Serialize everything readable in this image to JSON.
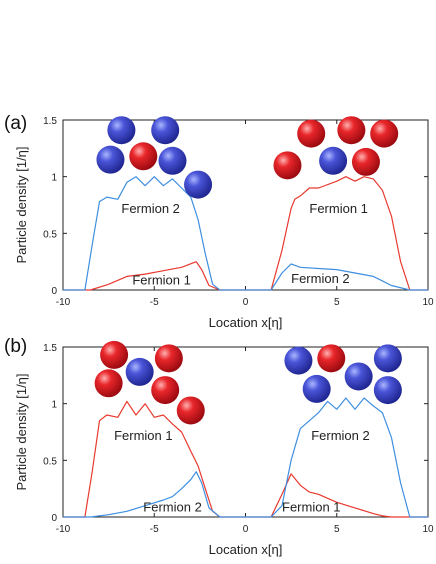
{
  "chart_data": [
    {
      "type": "line",
      "panel_label": "(a)",
      "xlabel": "Location x[η]",
      "ylabel": "Particle density [1/η]",
      "xlim": [
        -10,
        10
      ],
      "ylim": [
        0,
        1.5
      ],
      "xticks": [
        "-10",
        "-5",
        "0",
        "5",
        "10"
      ],
      "yticks": [
        "0",
        "0.5",
        "1",
        "1.5"
      ],
      "grid": false,
      "colors": {
        "Fermion 1": "#e8392e",
        "Fermion 2": "#3f8fe0"
      },
      "annotations": [
        {
          "text": "Fermion 2",
          "x": -6.8,
          "y": 0.68
        },
        {
          "text": "Fermion 1",
          "x": -6.2,
          "y": 0.05
        },
        {
          "text": "Fermion 1",
          "x": 3.5,
          "y": 0.68
        },
        {
          "text": "Fermion 2",
          "x": 2.5,
          "y": 0.06
        }
      ],
      "spheres": [
        {
          "x": -6.8,
          "y": 1.41,
          "color": "blue"
        },
        {
          "x": -4.4,
          "y": 1.41,
          "color": "blue"
        },
        {
          "x": -7.4,
          "y": 1.15,
          "color": "blue"
        },
        {
          "x": -5.6,
          "y": 1.18,
          "color": "red"
        },
        {
          "x": -4.0,
          "y": 1.14,
          "color": "blue"
        },
        {
          "x": -2.6,
          "y": 0.93,
          "color": "blue"
        },
        {
          "x": 3.6,
          "y": 1.38,
          "color": "red"
        },
        {
          "x": 5.8,
          "y": 1.41,
          "color": "red"
        },
        {
          "x": 7.6,
          "y": 1.38,
          "color": "red"
        },
        {
          "x": 2.3,
          "y": 1.1,
          "color": "red"
        },
        {
          "x": 4.8,
          "y": 1.14,
          "color": "blue"
        },
        {
          "x": 6.6,
          "y": 1.13,
          "color": "red"
        }
      ],
      "series": [
        {
          "name": "Fermion 1",
          "color": "#e8392e",
          "x": [
            -10,
            -8.5,
            -7.5,
            -6.5,
            -5.5,
            -4.5,
            -3.5,
            -2.7,
            -2.4,
            -2.0,
            -1.4,
            1.4,
            2.0,
            2.5,
            2.7,
            3.0,
            3.5,
            4.0,
            5.0,
            5.5,
            6.0,
            6.5,
            7.0,
            7.5,
            8.0,
            8.5,
            9.0,
            10
          ],
          "y": [
            0,
            0,
            0.05,
            0.12,
            0.14,
            0.17,
            0.2,
            0.25,
            0.18,
            0.04,
            0,
            0,
            0.35,
            0.72,
            0.8,
            0.83,
            0.9,
            0.9,
            0.96,
            1.0,
            0.96,
            1.0,
            0.98,
            0.88,
            0.65,
            0.25,
            0,
            0
          ]
        },
        {
          "name": "Fermion 2",
          "color": "#3f8fe0",
          "x": [
            -10,
            -8.8,
            -8.4,
            -8.0,
            -7.6,
            -7.0,
            -6.5,
            -6.0,
            -5.5,
            -5.0,
            -4.5,
            -4.0,
            -3.5,
            -3.0,
            -2.6,
            -2.2,
            -1.8,
            -1.4,
            1.4,
            2.0,
            2.5,
            3.0,
            4.0,
            5.0,
            6.0,
            7.0,
            7.5,
            8.0,
            9.0,
            10
          ],
          "y": [
            0,
            0,
            0.4,
            0.78,
            0.82,
            0.8,
            0.95,
            1.0,
            0.92,
            1.0,
            0.92,
            0.98,
            0.9,
            0.82,
            0.62,
            0.32,
            0.05,
            0,
            0,
            0.15,
            0.23,
            0.2,
            0.19,
            0.18,
            0.15,
            0.12,
            0.08,
            0.04,
            0,
            0
          ]
        }
      ]
    },
    {
      "type": "line",
      "panel_label": "(b)",
      "xlabel": "Location x[η]",
      "ylabel": "Particle density [1/η]",
      "xlim": [
        -10,
        10
      ],
      "ylim": [
        0,
        1.5
      ],
      "xticks": [
        "-10",
        "-5",
        "0",
        "5",
        "10"
      ],
      "yticks": [
        "0",
        "0.5",
        "1",
        "1.5"
      ],
      "grid": false,
      "colors": {
        "Fermion 1": "#e8392e",
        "Fermion 2": "#3f8fe0"
      },
      "annotations": [
        {
          "text": "Fermion 1",
          "x": -7.2,
          "y": 0.68
        },
        {
          "text": "Fermion 2",
          "x": -5.6,
          "y": 0.05
        },
        {
          "text": "Fermion 2",
          "x": 3.6,
          "y": 0.68
        },
        {
          "text": "Fermion 1",
          "x": 2.0,
          "y": 0.05
        }
      ],
      "spheres": [
        {
          "x": -7.2,
          "y": 1.43,
          "color": "red"
        },
        {
          "x": -4.2,
          "y": 1.4,
          "color": "red"
        },
        {
          "x": -7.5,
          "y": 1.18,
          "color": "red"
        },
        {
          "x": -5.8,
          "y": 1.28,
          "color": "blue"
        },
        {
          "x": -4.4,
          "y": 1.12,
          "color": "red"
        },
        {
          "x": -3.0,
          "y": 0.94,
          "color": "red"
        },
        {
          "x": 2.9,
          "y": 1.38,
          "color": "blue"
        },
        {
          "x": 4.7,
          "y": 1.4,
          "color": "red"
        },
        {
          "x": 7.8,
          "y": 1.4,
          "color": "blue"
        },
        {
          "x": 3.9,
          "y": 1.13,
          "color": "blue"
        },
        {
          "x": 6.2,
          "y": 1.24,
          "color": "blue"
        },
        {
          "x": 7.8,
          "y": 1.12,
          "color": "blue"
        }
      ],
      "series": [
        {
          "name": "Fermion 1",
          "color": "#e8392e",
          "x": [
            -10,
            -8.8,
            -8.4,
            -8.0,
            -7.6,
            -7.0,
            -6.5,
            -6.0,
            -5.5,
            -5.0,
            -4.5,
            -4.0,
            -3.5,
            -3.0,
            -2.6,
            -2.2,
            -1.8,
            -1.4,
            1.4,
            2.0,
            2.5,
            3.0,
            3.5,
            4.0,
            5.0,
            6.0,
            7.0,
            7.5,
            8.0,
            9.0,
            10
          ],
          "y": [
            0,
            0,
            0.4,
            0.85,
            0.9,
            0.88,
            1.02,
            0.9,
            1.0,
            0.88,
            0.9,
            0.82,
            0.75,
            0.58,
            0.45,
            0.25,
            0.05,
            0,
            0,
            0.2,
            0.38,
            0.28,
            0.22,
            0.2,
            0.13,
            0.08,
            0.03,
            0.01,
            0,
            0,
            0
          ]
        },
        {
          "name": "Fermion 2",
          "color": "#3f8fe0",
          "x": [
            -10,
            -8.5,
            -7.5,
            -6.5,
            -5.5,
            -4.5,
            -4.0,
            -3.5,
            -3.0,
            -2.7,
            -2.4,
            -2.0,
            -1.4,
            1.4,
            2.0,
            2.5,
            3.0,
            3.5,
            4.0,
            4.5,
            5.0,
            5.5,
            6.0,
            6.5,
            7.0,
            7.5,
            8.0,
            8.5,
            9.0,
            10
          ],
          "y": [
            0,
            0,
            0.02,
            0.05,
            0.1,
            0.15,
            0.18,
            0.25,
            0.33,
            0.4,
            0.3,
            0.08,
            0,
            0,
            0.1,
            0.5,
            0.78,
            0.85,
            0.92,
            1.02,
            0.95,
            1.05,
            0.95,
            1.05,
            0.98,
            0.92,
            0.7,
            0.3,
            0,
            0
          ]
        }
      ]
    }
  ]
}
